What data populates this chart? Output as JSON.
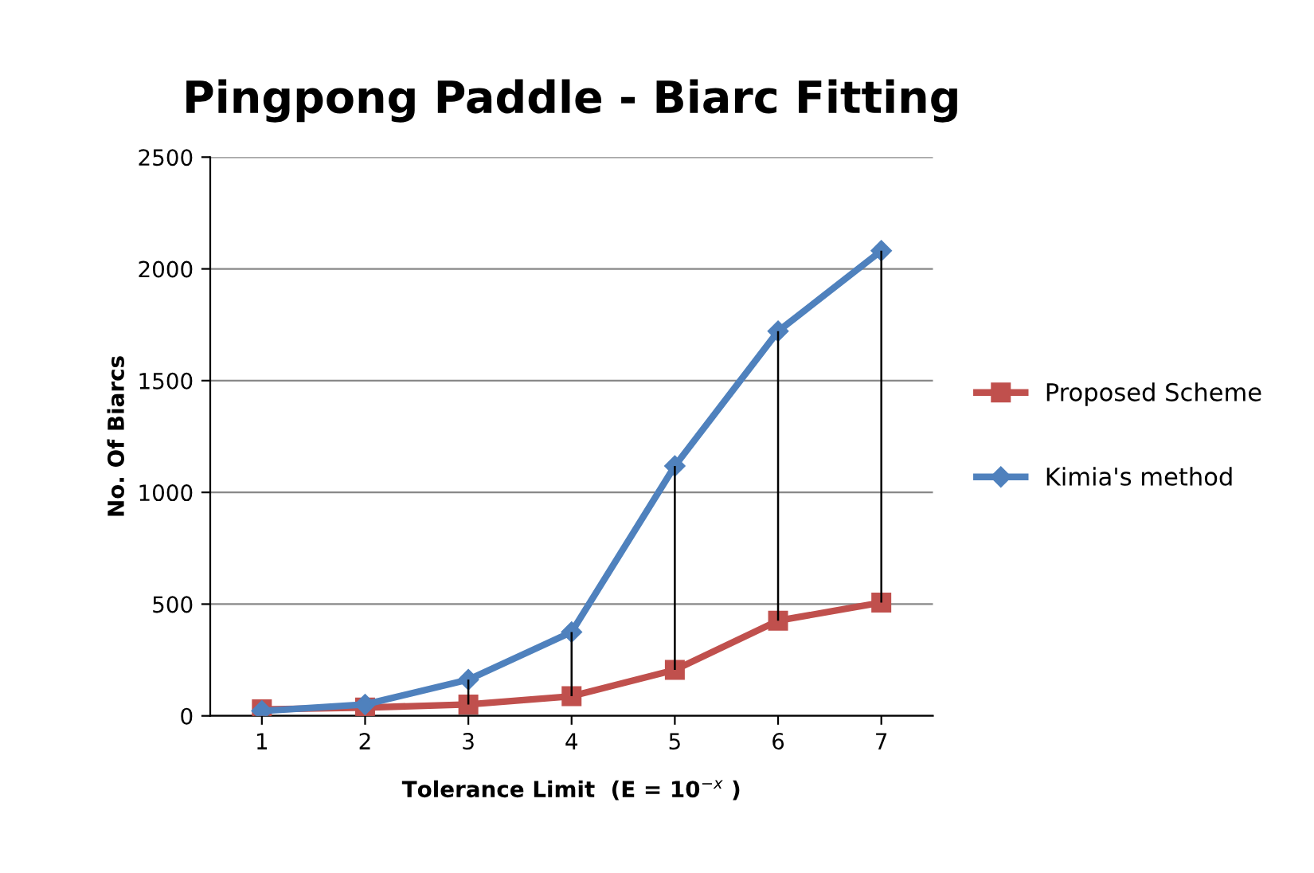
{
  "chart_data": {
    "type": "line",
    "title": "Pingpong Paddle - Biarc Fitting",
    "xlabel": "Tolerance Limit  (E = 10$^{−x}$ )",
    "ylabel": "No. Of Biarcs",
    "categories": [
      "1",
      "2",
      "3",
      "4",
      "5",
      "6",
      "7"
    ],
    "series": [
      {
        "name": "Proposed Scheme",
        "color": "#c0504d",
        "marker": "square",
        "values": [
          29,
          37,
          51,
          88,
          206,
          426,
          507
        ],
        "errors": [
          null,
          null,
          [
            51,
            162
          ],
          [
            88,
            375
          ],
          [
            206,
            1118
          ],
          [
            426,
            1721
          ],
          [
            507,
            2081
          ]
        ]
      },
      {
        "name": "Kimia's method",
        "color": "#4f81bd",
        "marker": "diamond",
        "values": [
          22,
          51,
          162,
          375,
          1118,
          1721,
          2081
        ]
      }
    ],
    "ylim": [
      0,
      2500
    ],
    "yticks": [
      0,
      500,
      1000,
      1500,
      2000,
      2500
    ],
    "grid": "y",
    "legend": "right",
    "line_style": "solid"
  }
}
